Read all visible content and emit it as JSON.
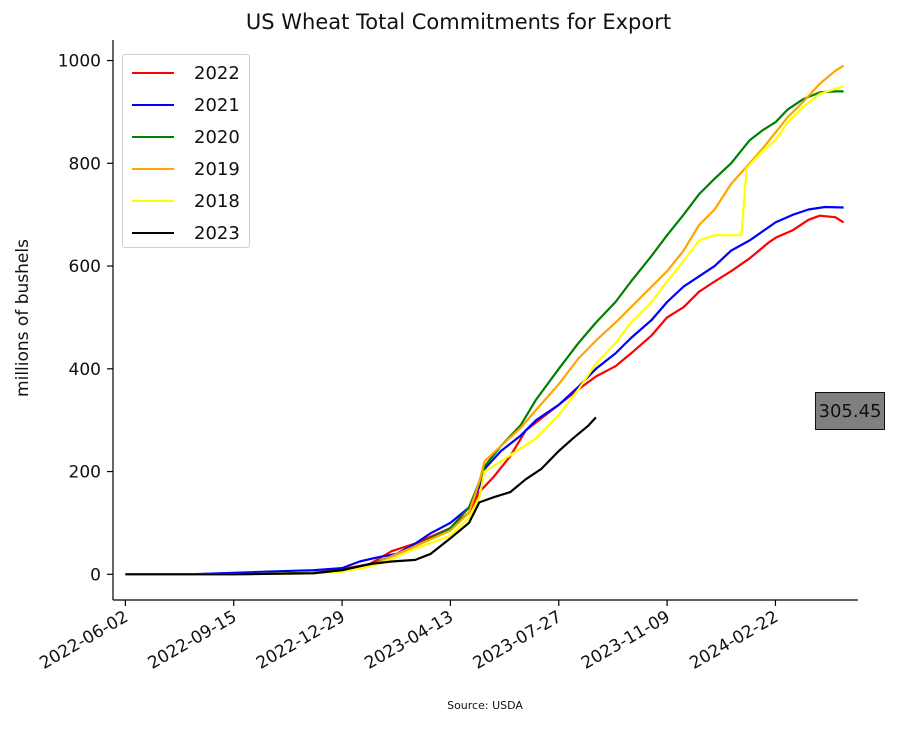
{
  "chart_data": {
    "type": "line",
    "title": "US Wheat Total Commitments for Export",
    "xlabel": "",
    "ylabel": "millions of bushels",
    "source": "Source: USDA",
    "ylim": [
      -50,
      1040
    ],
    "yticks": [
      0,
      200,
      400,
      600,
      800,
      1000
    ],
    "xlim": [
      "2022-05-21",
      "2024-05-12"
    ],
    "xticks": [
      "2022-06-02",
      "2022-09-15",
      "2022-12-29",
      "2023-04-13",
      "2023-07-27",
      "2023-11-09",
      "2024-02-22"
    ],
    "grid": false,
    "legend_position": "top-left",
    "annotation": {
      "label": "305.45"
    },
    "series": [
      {
        "name": "2022",
        "color": "#ff0000",
        "points": [
          [
            "2022-06-02",
            0
          ],
          [
            "2022-09-15",
            0
          ],
          [
            "2022-12-01",
            3
          ],
          [
            "2022-12-29",
            10
          ],
          [
            "2023-01-25",
            20
          ],
          [
            "2023-02-15",
            45
          ],
          [
            "2023-03-10",
            60
          ],
          [
            "2023-04-13",
            90
          ],
          [
            "2023-05-01",
            120
          ],
          [
            "2023-05-11",
            160
          ],
          [
            "2023-05-25",
            190
          ],
          [
            "2023-06-10",
            230
          ],
          [
            "2023-06-25",
            280
          ],
          [
            "2023-07-27",
            330
          ],
          [
            "2023-08-15",
            360
          ],
          [
            "2023-09-01",
            385
          ],
          [
            "2023-09-20",
            405
          ],
          [
            "2023-10-05",
            430
          ],
          [
            "2023-10-25",
            465
          ],
          [
            "2023-11-09",
            500
          ],
          [
            "2023-11-25",
            520
          ],
          [
            "2023-12-10",
            550
          ],
          [
            "2023-12-25",
            570
          ],
          [
            "2024-01-10",
            590
          ],
          [
            "2024-01-28",
            615
          ],
          [
            "2024-02-15",
            645
          ],
          [
            "2024-02-22",
            655
          ],
          [
            "2024-03-10",
            670
          ],
          [
            "2024-03-25",
            690
          ],
          [
            "2024-04-05",
            698
          ],
          [
            "2024-04-20",
            695
          ],
          [
            "2024-04-28",
            685
          ]
        ]
      },
      {
        "name": "2021",
        "color": "#0000ff",
        "points": [
          [
            "2022-06-02",
            0
          ],
          [
            "2022-08-01",
            0
          ],
          [
            "2022-09-15",
            3
          ],
          [
            "2022-10-15",
            5
          ],
          [
            "2022-11-15",
            7
          ],
          [
            "2022-12-01",
            8
          ],
          [
            "2022-12-29",
            12
          ],
          [
            "2023-01-15",
            25
          ],
          [
            "2023-02-01",
            33
          ],
          [
            "2023-02-20",
            40
          ],
          [
            "2023-03-10",
            60
          ],
          [
            "2023-03-25",
            80
          ],
          [
            "2023-04-13",
            100
          ],
          [
            "2023-05-01",
            130
          ],
          [
            "2023-05-11",
            170
          ],
          [
            "2023-05-16",
            205
          ],
          [
            "2023-06-01",
            240
          ],
          [
            "2023-06-20",
            270
          ],
          [
            "2023-07-05",
            300
          ],
          [
            "2023-07-27",
            330
          ],
          [
            "2023-08-15",
            365
          ],
          [
            "2023-09-01",
            400
          ],
          [
            "2023-09-20",
            430
          ],
          [
            "2023-10-05",
            460
          ],
          [
            "2023-10-25",
            495
          ],
          [
            "2023-11-09",
            530
          ],
          [
            "2023-11-25",
            560
          ],
          [
            "2023-12-10",
            580
          ],
          [
            "2023-12-25",
            600
          ],
          [
            "2024-01-10",
            630
          ],
          [
            "2024-01-28",
            650
          ],
          [
            "2024-02-15",
            675
          ],
          [
            "2024-02-22",
            685
          ],
          [
            "2024-03-10",
            700
          ],
          [
            "2024-03-25",
            710
          ],
          [
            "2024-04-10",
            715
          ],
          [
            "2024-04-28",
            714
          ]
        ]
      },
      {
        "name": "2020",
        "color": "#008000",
        "points": [
          [
            "2022-06-02",
            0
          ],
          [
            "2022-09-15",
            0
          ],
          [
            "2022-12-01",
            3
          ],
          [
            "2022-12-29",
            8
          ],
          [
            "2023-01-25",
            18
          ],
          [
            "2023-02-15",
            35
          ],
          [
            "2023-03-10",
            55
          ],
          [
            "2023-04-13",
            90
          ],
          [
            "2023-05-01",
            130
          ],
          [
            "2023-05-11",
            180
          ],
          [
            "2023-05-16",
            210
          ],
          [
            "2023-06-01",
            250
          ],
          [
            "2023-06-20",
            290
          ],
          [
            "2023-07-05",
            340
          ],
          [
            "2023-07-27",
            400
          ],
          [
            "2023-08-15",
            450
          ],
          [
            "2023-09-01",
            490
          ],
          [
            "2023-09-20",
            530
          ],
          [
            "2023-10-05",
            570
          ],
          [
            "2023-10-25",
            620
          ],
          [
            "2023-11-09",
            660
          ],
          [
            "2023-11-25",
            700
          ],
          [
            "2023-12-10",
            740
          ],
          [
            "2023-12-25",
            770
          ],
          [
            "2024-01-10",
            800
          ],
          [
            "2024-01-28",
            845
          ],
          [
            "2024-02-10",
            865
          ],
          [
            "2024-02-22",
            880
          ],
          [
            "2024-03-05",
            905
          ],
          [
            "2024-03-20",
            925
          ],
          [
            "2024-04-05",
            938
          ],
          [
            "2024-04-20",
            940
          ],
          [
            "2024-04-28",
            940
          ]
        ]
      },
      {
        "name": "2019",
        "color": "#ffa500",
        "points": [
          [
            "2022-06-02",
            0
          ],
          [
            "2022-09-15",
            0
          ],
          [
            "2022-12-01",
            2
          ],
          [
            "2022-12-29",
            6
          ],
          [
            "2023-01-25",
            15
          ],
          [
            "2023-02-15",
            35
          ],
          [
            "2023-03-10",
            55
          ],
          [
            "2023-04-13",
            85
          ],
          [
            "2023-05-01",
            120
          ],
          [
            "2023-05-11",
            180
          ],
          [
            "2023-05-16",
            220
          ],
          [
            "2023-06-01",
            250
          ],
          [
            "2023-06-20",
            285
          ],
          [
            "2023-07-05",
            320
          ],
          [
            "2023-07-27",
            370
          ],
          [
            "2023-08-15",
            420
          ],
          [
            "2023-09-01",
            455
          ],
          [
            "2023-09-20",
            490
          ],
          [
            "2023-10-05",
            520
          ],
          [
            "2023-10-25",
            560
          ],
          [
            "2023-11-09",
            590
          ],
          [
            "2023-11-25",
            630
          ],
          [
            "2023-12-10",
            680
          ],
          [
            "2023-12-25",
            710
          ],
          [
            "2024-01-10",
            760
          ],
          [
            "2024-01-28",
            800
          ],
          [
            "2024-02-10",
            830
          ],
          [
            "2024-02-22",
            860
          ],
          [
            "2024-03-05",
            890
          ],
          [
            "2024-03-20",
            920
          ],
          [
            "2024-04-05",
            955
          ],
          [
            "2024-04-20",
            980
          ],
          [
            "2024-04-28",
            990
          ]
        ]
      },
      {
        "name": "2018",
        "color": "#ffff00",
        "points": [
          [
            "2022-06-02",
            0
          ],
          [
            "2022-09-15",
            0
          ],
          [
            "2022-12-01",
            2
          ],
          [
            "2022-12-29",
            5
          ],
          [
            "2023-01-25",
            15
          ],
          [
            "2023-02-15",
            30
          ],
          [
            "2023-03-10",
            50
          ],
          [
            "2023-04-13",
            75
          ],
          [
            "2023-05-01",
            110
          ],
          [
            "2023-05-11",
            150
          ],
          [
            "2023-05-16",
            200
          ],
          [
            "2023-06-01",
            220
          ],
          [
            "2023-06-20",
            245
          ],
          [
            "2023-07-05",
            265
          ],
          [
            "2023-07-27",
            310
          ],
          [
            "2023-08-15",
            360
          ],
          [
            "2023-09-01",
            410
          ],
          [
            "2023-09-20",
            450
          ],
          [
            "2023-10-05",
            490
          ],
          [
            "2023-10-25",
            530
          ],
          [
            "2023-11-09",
            570
          ],
          [
            "2023-11-25",
            610
          ],
          [
            "2023-12-10",
            650
          ],
          [
            "2023-12-25",
            660
          ],
          [
            "2024-01-10",
            660
          ],
          [
            "2024-01-20",
            660
          ],
          [
            "2024-01-25",
            790
          ],
          [
            "2024-02-10",
            825
          ],
          [
            "2024-02-22",
            845
          ],
          [
            "2024-03-05",
            880
          ],
          [
            "2024-03-20",
            910
          ],
          [
            "2024-04-05",
            935
          ],
          [
            "2024-04-20",
            945
          ],
          [
            "2024-04-28",
            950
          ]
        ]
      },
      {
        "name": "2023",
        "color": "#000000",
        "points": [
          [
            "2022-06-02",
            0
          ],
          [
            "2022-09-15",
            0
          ],
          [
            "2022-12-01",
            2
          ],
          [
            "2022-12-29",
            8
          ],
          [
            "2023-01-25",
            20
          ],
          [
            "2023-02-15",
            25
          ],
          [
            "2023-03-10",
            28
          ],
          [
            "2023-03-25",
            40
          ],
          [
            "2023-04-13",
            70
          ],
          [
            "2023-05-01",
            100
          ],
          [
            "2023-05-11",
            140
          ],
          [
            "2023-05-25",
            150
          ],
          [
            "2023-06-10",
            160
          ],
          [
            "2023-06-25",
            185
          ],
          [
            "2023-07-10",
            205
          ],
          [
            "2023-07-27",
            240
          ],
          [
            "2023-08-10",
            265
          ],
          [
            "2023-08-25",
            290
          ],
          [
            "2023-09-01",
            305.45
          ]
        ]
      }
    ]
  }
}
